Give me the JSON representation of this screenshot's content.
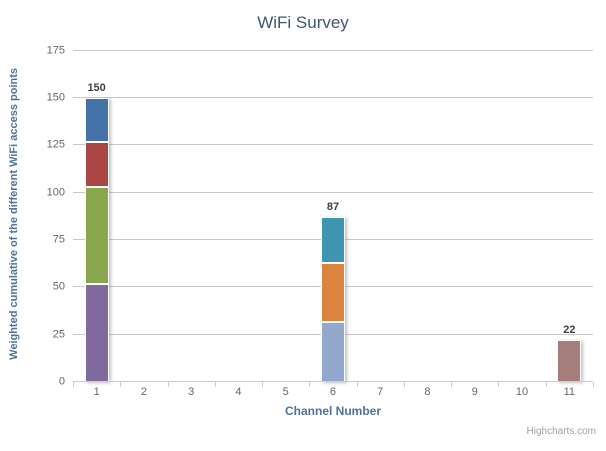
{
  "title": "WiFi Survey",
  "credits": "Highcharts.com",
  "chart_data": {
    "type": "bar",
    "stacked": true,
    "title": "WiFi Survey",
    "xlabel": "Channel Number",
    "ylabel": "Weighted cumulative of the different WiFi access points",
    "categories": [
      "1",
      "2",
      "3",
      "4",
      "5",
      "6",
      "7",
      "8",
      "9",
      "10",
      "11"
    ],
    "yticks": [
      0,
      25,
      50,
      75,
      100,
      125,
      150,
      175
    ],
    "ylim": [
      0,
      177.5
    ],
    "grid": true,
    "legend": "none",
    "bars": [
      {
        "category": "1",
        "total": 150,
        "total_label": "150",
        "segments": [
          {
            "value": 52,
            "color": "#80699B",
            "color_name": "purple"
          },
          {
            "value": 52,
            "color": "#89A54E",
            "color_name": "green"
          },
          {
            "value": 23,
            "color": "#AA4643",
            "color_name": "red"
          },
          {
            "value": 23,
            "color": "#4572A7",
            "color_name": "blue"
          }
        ]
      },
      {
        "category": "6",
        "total": 87,
        "total_label": "87",
        "segments": [
          {
            "value": 32,
            "color": "#92A8CD",
            "color_name": "light-blue"
          },
          {
            "value": 31,
            "color": "#DB843D",
            "color_name": "orange"
          },
          {
            "value": 24,
            "color": "#3D96AE",
            "color_name": "teal"
          }
        ]
      },
      {
        "category": "11",
        "total": 22,
        "total_label": "22",
        "segments": [
          {
            "value": 22,
            "color": "#A47D7C",
            "color_name": "mauve"
          }
        ]
      }
    ]
  },
  "colors": {
    "background": "#FFFFFF",
    "title_color": "#3E576F",
    "axis_title_color": "#4D7399",
    "tick_label_color": "#666666",
    "stack_label_color": "#404040",
    "grid_color": "#C8C8C8",
    "axis_line_color": "#C0D0E0",
    "credits_color": "#A0A0A0"
  }
}
